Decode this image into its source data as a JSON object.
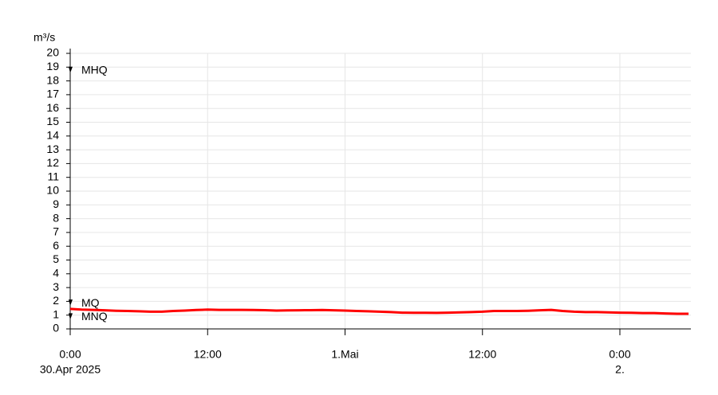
{
  "chart_data": {
    "type": "line",
    "y_label": "m³/s",
    "x": [
      0,
      1,
      2,
      3,
      4,
      5,
      6,
      7,
      8,
      9,
      10,
      11,
      12,
      13,
      14,
      15,
      16,
      17,
      18,
      19,
      20,
      21,
      22,
      23,
      24,
      25,
      26,
      27,
      28,
      29,
      30,
      31,
      32,
      33,
      34,
      35,
      36,
      37,
      38,
      39,
      40,
      41,
      42,
      43,
      44,
      45,
      46,
      47,
      48,
      49,
      50,
      51,
      52,
      53,
      54
    ],
    "series": [
      {
        "color": "#ff0000",
        "values": [
          1.45,
          1.4,
          1.38,
          1.35,
          1.32,
          1.3,
          1.28,
          1.25,
          1.25,
          1.3,
          1.33,
          1.37,
          1.4,
          1.38,
          1.38,
          1.38,
          1.37,
          1.36,
          1.33,
          1.34,
          1.35,
          1.36,
          1.37,
          1.35,
          1.33,
          1.3,
          1.28,
          1.25,
          1.22,
          1.18,
          1.17,
          1.17,
          1.16,
          1.18,
          1.2,
          1.22,
          1.25,
          1.3,
          1.3,
          1.3,
          1.32,
          1.35,
          1.38,
          1.3,
          1.25,
          1.22,
          1.22,
          1.2,
          1.18,
          1.17,
          1.15,
          1.15,
          1.12,
          1.1,
          1.1
        ]
      }
    ],
    "xlim": [
      0,
      54.2
    ],
    "xticks": [
      {
        "value": 0,
        "label": "0:00"
      },
      {
        "value": 12,
        "label": "12:00"
      },
      {
        "value": 24,
        "label": "1.Mai"
      },
      {
        "value": 36,
        "label": "12:00"
      },
      {
        "value": 48,
        "label": "0:00"
      }
    ],
    "x_date_labels": [
      {
        "value": 0,
        "label": "30.Apr 2025"
      },
      {
        "value": 48,
        "label": "2."
      }
    ],
    "ylim": [
      0,
      20
    ],
    "yticks": [
      0,
      1,
      2,
      3,
      4,
      5,
      6,
      7,
      8,
      9,
      10,
      11,
      12,
      13,
      14,
      15,
      16,
      17,
      18,
      19,
      20
    ],
    "markers": [
      {
        "label": "MHQ",
        "value": 18.8
      },
      {
        "label": "MQ",
        "value": 1.9
      },
      {
        "label": "MNQ",
        "value": 0.9
      }
    ],
    "grid": true
  }
}
